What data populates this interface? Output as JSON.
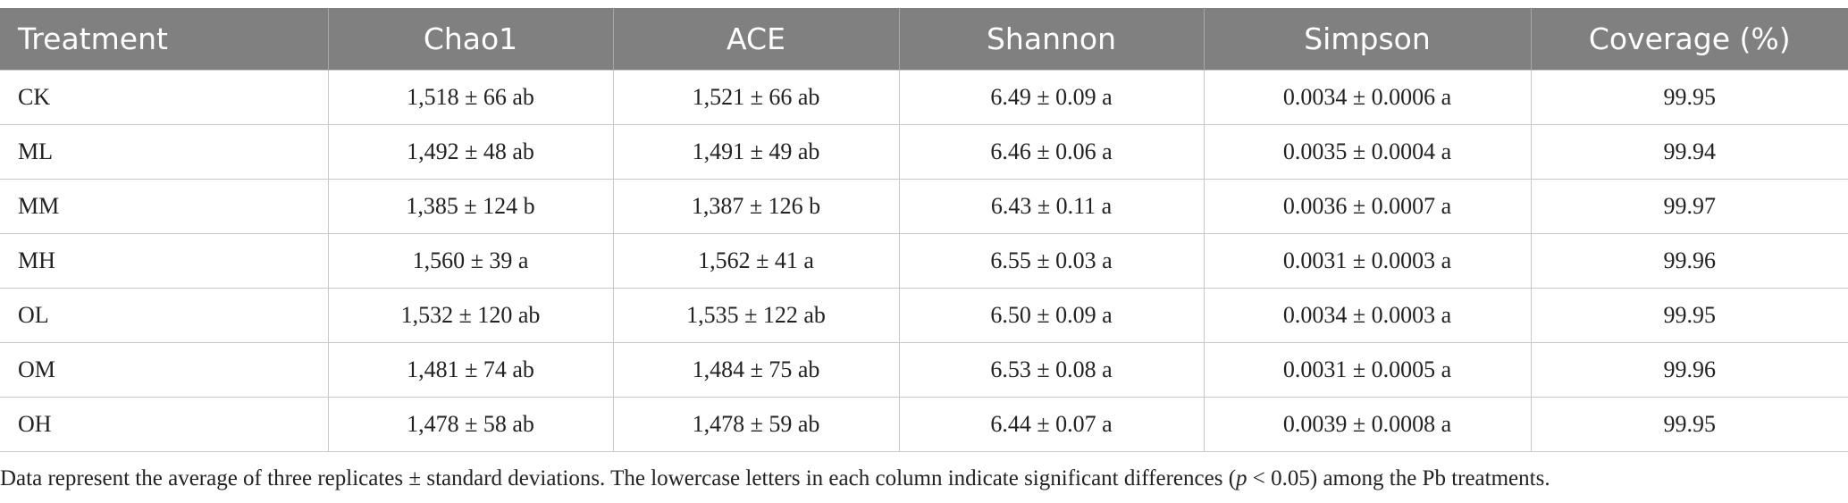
{
  "table": {
    "columns": [
      "Treatment",
      "Chao1",
      "ACE",
      "Shannon",
      "Simpson",
      "Coverage (%)"
    ],
    "rows": [
      [
        "CK",
        "1,518 ± 66 ab",
        "1,521 ± 66 ab",
        "6.49 ± 0.09 a",
        "0.0034 ± 0.0006 a",
        "99.95"
      ],
      [
        "ML",
        "1,492 ± 48 ab",
        "1,491 ± 49 ab",
        "6.46 ± 0.06 a",
        "0.0035 ± 0.0004 a",
        "99.94"
      ],
      [
        "MM",
        "1,385 ± 124 b",
        "1,387 ± 126 b",
        "6.43 ± 0.11 a",
        "0.0036 ± 0.0007 a",
        "99.97"
      ],
      [
        "MH",
        "1,560 ± 39 a",
        "1,562 ± 41 a",
        "6.55 ± 0.03 a",
        "0.0031 ± 0.0003 a",
        "99.96"
      ],
      [
        "OL",
        "1,532 ± 120 ab",
        "1,535 ± 122 ab",
        "6.50 ± 0.09 a",
        "0.0034 ± 0.0003 a",
        "99.95"
      ],
      [
        "OM",
        "1,481 ± 74 ab",
        "1,484 ± 75 ab",
        "6.53 ± 0.08 a",
        "0.0031 ± 0.0005 a",
        "99.96"
      ],
      [
        "OH",
        "1,478 ± 58 ab",
        "1,478 ± 59 ab",
        "6.44 ± 0.07 a",
        "0.0039 ± 0.0008 a",
        "99.95"
      ]
    ]
  },
  "footnote": {
    "before": "Data represent the average of three replicates ± standard deviations. The lowercase letters in each column indicate significant differences (",
    "italic": "p",
    "after": " < 0.05) among the Pb treatments."
  }
}
